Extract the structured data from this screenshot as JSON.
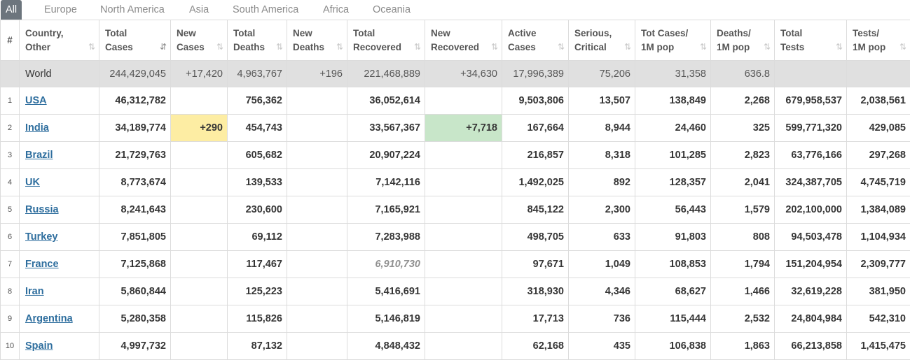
{
  "tabs": [
    {
      "label": "All",
      "active": true
    },
    {
      "label": "Europe"
    },
    {
      "label": "North America"
    },
    {
      "label": "Asia"
    },
    {
      "label": "South America"
    },
    {
      "label": "Africa"
    },
    {
      "label": "Oceania"
    }
  ],
  "headers": [
    {
      "l1": "#",
      "l2": "",
      "sort": ""
    },
    {
      "l1": "Country,",
      "l2": "Other",
      "sort": "⇅"
    },
    {
      "l1": "Total",
      "l2": "Cases",
      "sort": "⇵"
    },
    {
      "l1": "New",
      "l2": "Cases",
      "sort": "⇅"
    },
    {
      "l1": "Total",
      "l2": "Deaths",
      "sort": "⇅"
    },
    {
      "l1": "New",
      "l2": "Deaths",
      "sort": "⇅"
    },
    {
      "l1": "Total",
      "l2": "Recovered",
      "sort": "⇅"
    },
    {
      "l1": "New",
      "l2": "Recovered",
      "sort": "⇅"
    },
    {
      "l1": "Active",
      "l2": "Cases",
      "sort": "⇅"
    },
    {
      "l1": "Serious,",
      "l2": "Critical",
      "sort": "⇅"
    },
    {
      "l1": "Tot Cases/",
      "l2": "1M pop",
      "sort": "⇅"
    },
    {
      "l1": "Deaths/",
      "l2": "1M pop",
      "sort": "⇅"
    },
    {
      "l1": "Total",
      "l2": "Tests",
      "sort": "⇅"
    },
    {
      "l1": "Tests/",
      "l2": "1M pop",
      "sort": "⇅"
    }
  ],
  "world": {
    "country": "World",
    "total_cases": "244,429,045",
    "new_cases": "+17,420",
    "total_deaths": "4,963,767",
    "new_deaths": "+196",
    "total_recovered": "221,468,889",
    "new_recovered": "+34,630",
    "active": "17,996,389",
    "serious": "75,206",
    "cases_per_m": "31,358",
    "deaths_per_m": "636.8",
    "tests": "",
    "tests_per_m": ""
  },
  "rows": [
    {
      "rank": "1",
      "country": "USA",
      "total_cases": "46,312,782",
      "new_cases": "",
      "total_deaths": "756,362",
      "new_deaths": "",
      "total_recovered": "36,052,614",
      "new_recovered": "",
      "active": "9,503,806",
      "serious": "13,507",
      "cases_per_m": "138,849",
      "deaths_per_m": "2,268",
      "tests": "679,958,537",
      "tests_per_m": "2,038,561"
    },
    {
      "rank": "2",
      "country": "India",
      "total_cases": "34,189,774",
      "new_cases": "+290",
      "total_deaths": "454,743",
      "new_deaths": "",
      "total_recovered": "33,567,367",
      "new_recovered": "+7,718",
      "active": "167,664",
      "serious": "8,944",
      "cases_per_m": "24,460",
      "deaths_per_m": "325",
      "tests": "599,771,320",
      "tests_per_m": "429,085"
    },
    {
      "rank": "3",
      "country": "Brazil",
      "total_cases": "21,729,763",
      "new_cases": "",
      "total_deaths": "605,682",
      "new_deaths": "",
      "total_recovered": "20,907,224",
      "new_recovered": "",
      "active": "216,857",
      "serious": "8,318",
      "cases_per_m": "101,285",
      "deaths_per_m": "2,823",
      "tests": "63,776,166",
      "tests_per_m": "297,268"
    },
    {
      "rank": "4",
      "country": "UK",
      "total_cases": "8,773,674",
      "new_cases": "",
      "total_deaths": "139,533",
      "new_deaths": "",
      "total_recovered": "7,142,116",
      "new_recovered": "",
      "active": "1,492,025",
      "serious": "892",
      "cases_per_m": "128,357",
      "deaths_per_m": "2,041",
      "tests": "324,387,705",
      "tests_per_m": "4,745,719"
    },
    {
      "rank": "5",
      "country": "Russia",
      "total_cases": "8,241,643",
      "new_cases": "",
      "total_deaths": "230,600",
      "new_deaths": "",
      "total_recovered": "7,165,921",
      "new_recovered": "",
      "active": "845,122",
      "serious": "2,300",
      "cases_per_m": "56,443",
      "deaths_per_m": "1,579",
      "tests": "202,100,000",
      "tests_per_m": "1,384,089"
    },
    {
      "rank": "6",
      "country": "Turkey",
      "total_cases": "7,851,805",
      "new_cases": "",
      "total_deaths": "69,112",
      "new_deaths": "",
      "total_recovered": "7,283,988",
      "new_recovered": "",
      "active": "498,705",
      "serious": "633",
      "cases_per_m": "91,803",
      "deaths_per_m": "808",
      "tests": "94,503,478",
      "tests_per_m": "1,104,934"
    },
    {
      "rank": "7",
      "country": "France",
      "total_cases": "7,125,868",
      "new_cases": "",
      "total_deaths": "117,467",
      "new_deaths": "",
      "total_recovered": "6,910,730",
      "new_recovered": "",
      "active": "97,671",
      "serious": "1,049",
      "cases_per_m": "108,853",
      "deaths_per_m": "1,794",
      "tests": "151,204,954",
      "tests_per_m": "2,309,777"
    },
    {
      "rank": "8",
      "country": "Iran",
      "total_cases": "5,860,844",
      "new_cases": "",
      "total_deaths": "125,223",
      "new_deaths": "",
      "total_recovered": "5,416,691",
      "new_recovered": "",
      "active": "318,930",
      "serious": "4,346",
      "cases_per_m": "68,627",
      "deaths_per_m": "1,466",
      "tests": "32,619,228",
      "tests_per_m": "381,950"
    },
    {
      "rank": "9",
      "country": "Argentina",
      "total_cases": "5,280,358",
      "new_cases": "",
      "total_deaths": "115,826",
      "new_deaths": "",
      "total_recovered": "5,146,819",
      "new_recovered": "",
      "active": "17,713",
      "serious": "736",
      "cases_per_m": "115,444",
      "deaths_per_m": "2,532",
      "tests": "24,804,984",
      "tests_per_m": "542,310"
    },
    {
      "rank": "10",
      "country": "Spain",
      "total_cases": "4,997,732",
      "new_cases": "",
      "total_deaths": "87,132",
      "new_deaths": "",
      "total_recovered": "4,848,432",
      "new_recovered": "",
      "active": "62,168",
      "serious": "435",
      "cases_per_m": "106,838",
      "deaths_per_m": "1,863",
      "tests": "66,213,858",
      "tests_per_m": "1,415,475"
    }
  ]
}
